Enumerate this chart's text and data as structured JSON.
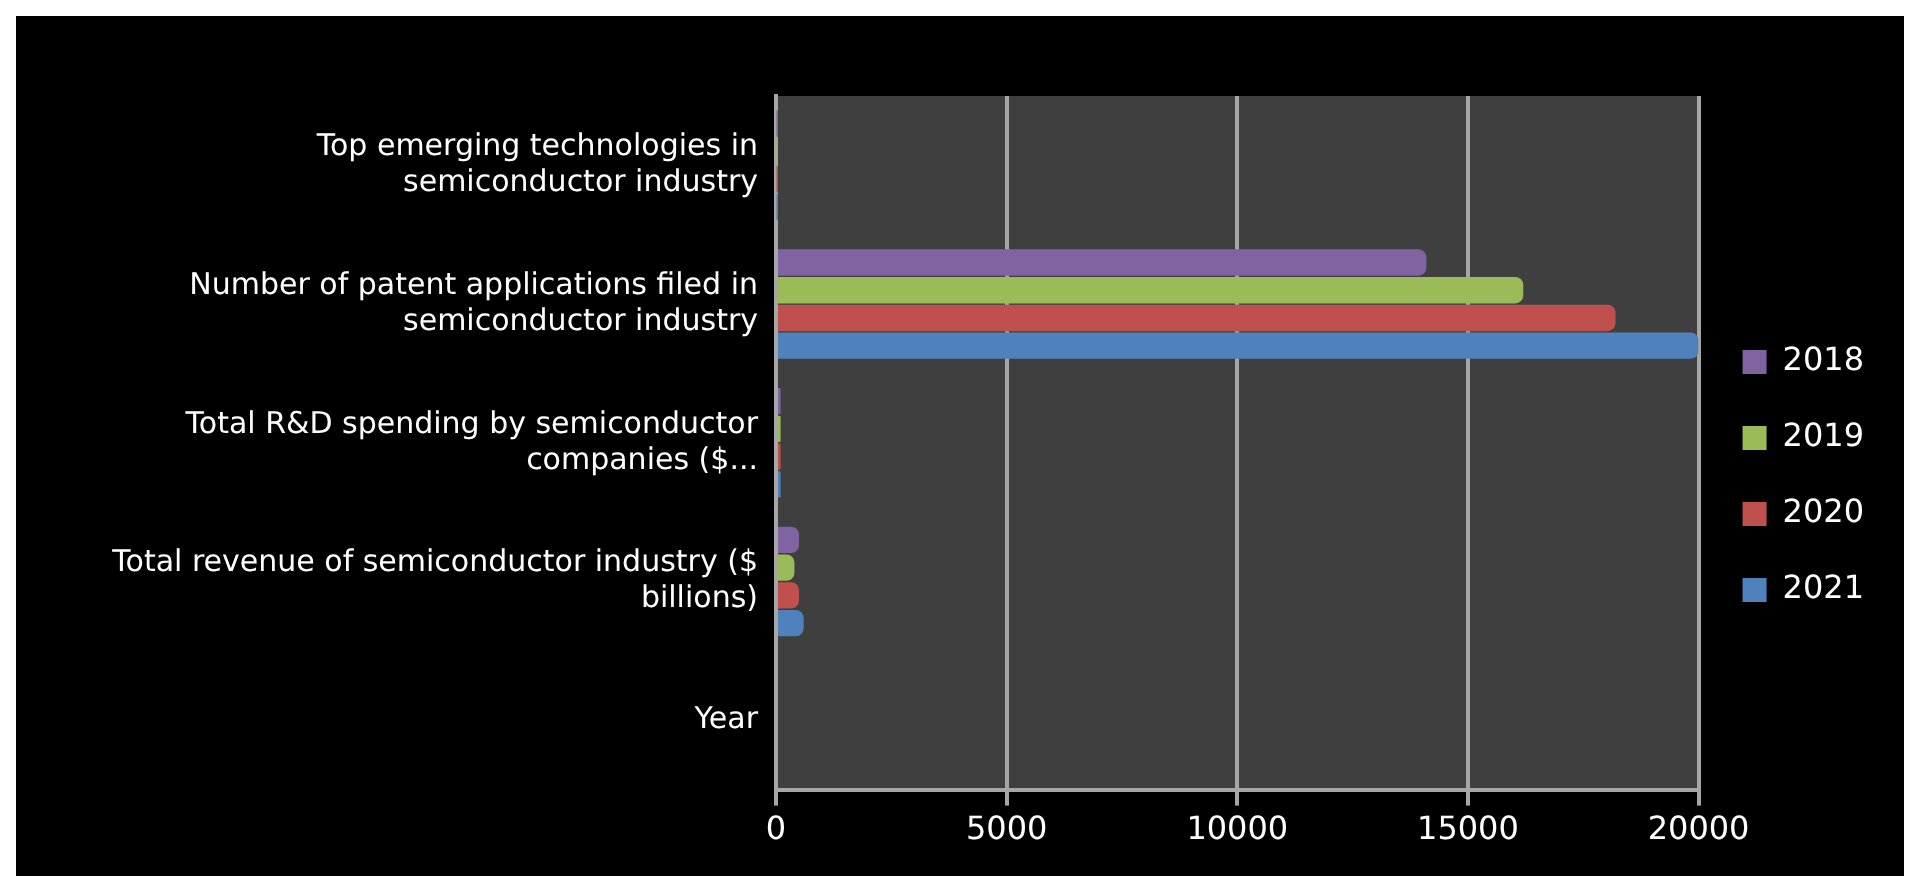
{
  "chart_data": {
    "type": "bar",
    "orientation": "horizontal",
    "categories": [
      "Top emerging technologies in semiconductor industry",
      "Number of patent applications filed in semiconductor industry",
      "Total R&D spending by semiconductor companies ($...",
      "Total revenue of semiconductor industry ($ billions)",
      "Year"
    ],
    "series": [
      {
        "name": "2018",
        "color": "#8064a2",
        "values": [
          10,
          14100,
          100,
          500,
          null
        ]
      },
      {
        "name": "2019",
        "color": "#9bbb59",
        "values": [
          10,
          16200,
          100,
          400,
          null
        ]
      },
      {
        "name": "2020",
        "color": "#c0504d",
        "values": [
          10,
          18200,
          100,
          500,
          null
        ]
      },
      {
        "name": "2021",
        "color": "#4f81bd",
        "values": [
          10,
          20000,
          100,
          600,
          null
        ]
      }
    ],
    "xlim": [
      0,
      20000
    ],
    "xticks": [
      0,
      5000,
      10000,
      15000,
      20000
    ],
    "grid": "x",
    "legend": "right"
  }
}
